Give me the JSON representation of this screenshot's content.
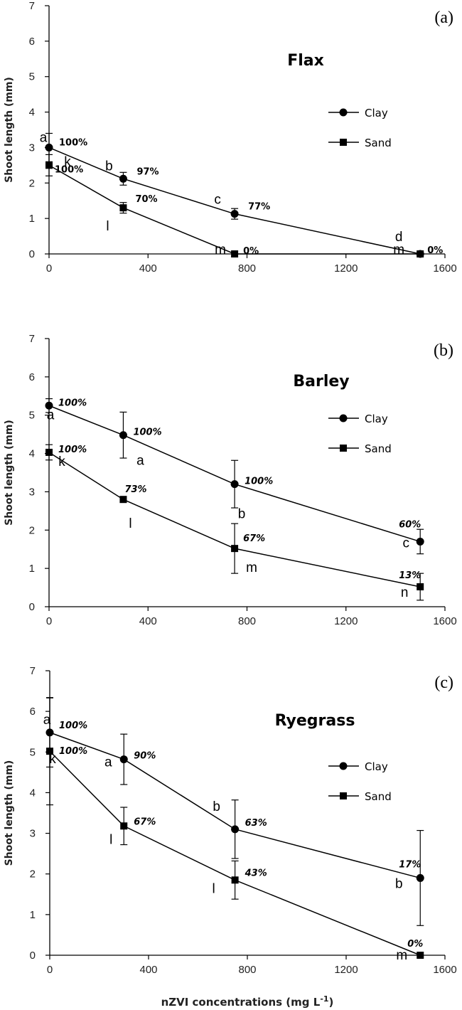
{
  "chart_data": [
    {
      "type": "line",
      "panel_label": "(a)",
      "title": "Flax",
      "ylabel": "Shoot length (mm)",
      "xlabel": "",
      "x": [
        0,
        300,
        750,
        1500
      ],
      "xlim": [
        0,
        1600
      ],
      "ylim": [
        0,
        7
      ],
      "xticks": [
        0,
        400,
        800,
        1200,
        1600
      ],
      "yticks": [
        0,
        1,
        2,
        3,
        4,
        5,
        6,
        7
      ],
      "legend_position": "right",
      "series": [
        {
          "name": "Clay",
          "marker": "circle",
          "x": [
            0,
            300,
            750,
            1500
          ],
          "values": [
            3.0,
            2.12,
            1.13,
            0.0
          ],
          "errors": [
            0.4,
            0.18,
            0.15,
            0.0
          ],
          "letters": [
            "a",
            "b",
            "c",
            "d"
          ],
          "percent_labels": [
            "100%",
            "97%",
            "77%",
            "0%"
          ]
        },
        {
          "name": "Sand",
          "marker": "square",
          "x": [
            0,
            300,
            750,
            1500
          ],
          "values": [
            2.5,
            1.3,
            0.0,
            0.0
          ],
          "errors": [
            0.3,
            0.15,
            0.0,
            0.0
          ],
          "letters": [
            "k",
            "l",
            "m",
            "m"
          ],
          "percent_labels": [
            "100%",
            "70%",
            "0%",
            ""
          ]
        }
      ]
    },
    {
      "type": "line",
      "panel_label": "(b)",
      "title": "Barley",
      "ylabel": "Shoot length (mm)",
      "xlabel": "",
      "x": [
        0,
        300,
        750,
        1500
      ],
      "xlim": [
        0,
        1600
      ],
      "ylim": [
        0,
        7
      ],
      "xticks": [
        0,
        400,
        800,
        1200,
        1600
      ],
      "yticks": [
        0,
        1,
        2,
        3,
        4,
        5,
        6,
        7
      ],
      "legend_position": "right",
      "series": [
        {
          "name": "Clay",
          "marker": "circle",
          "x": [
            0,
            300,
            750,
            1500
          ],
          "values": [
            5.25,
            4.48,
            3.2,
            1.7
          ],
          "errors": [
            0.18,
            0.6,
            0.62,
            0.32
          ],
          "letters": [
            "a",
            "a",
            "b",
            "c"
          ],
          "percent_labels": [
            "100%",
            "100%",
            "100%",
            "60%"
          ]
        },
        {
          "name": "Sand",
          "marker": "square",
          "x": [
            0,
            300,
            750,
            1500
          ],
          "values": [
            4.03,
            2.8,
            1.52,
            0.52
          ],
          "errors": [
            0.2,
            0.07,
            0.65,
            0.35
          ],
          "letters": [
            "k",
            "l",
            "m",
            "n"
          ],
          "percent_labels": [
            "100%",
            "73%",
            "67%",
            "13%"
          ]
        }
      ]
    },
    {
      "type": "line",
      "panel_label": "(c)",
      "title": "Ryegrass",
      "ylabel": "Shoot length (mm)",
      "xlabel": "nZVI concentrations  (mg L",
      "xlabel_superscript": "-1",
      "xlabel_suffix": ")",
      "x": [
        0,
        300,
        750,
        1500
      ],
      "xlim": [
        0,
        1600
      ],
      "ylim": [
        0,
        7
      ],
      "xticks": [
        0,
        400,
        800,
        1200,
        1600
      ],
      "yticks": [
        0,
        1,
        2,
        3,
        4,
        5,
        6,
        7
      ],
      "legend_position": "right",
      "series": [
        {
          "name": "Clay",
          "marker": "circle",
          "x": [
            0,
            300,
            750,
            1500
          ],
          "values": [
            5.48,
            4.82,
            3.1,
            1.9
          ],
          "errors": [
            0.85,
            0.62,
            0.72,
            1.17
          ],
          "letters": [
            "a",
            "a",
            "b",
            "b"
          ],
          "percent_labels": [
            "100%",
            "90%",
            "63%",
            "17%"
          ]
        },
        {
          "name": "Sand",
          "marker": "square",
          "x": [
            0,
            300,
            750,
            1500
          ],
          "values": [
            5.02,
            3.18,
            1.85,
            0.0
          ],
          "errors": [
            1.32,
            0.46,
            0.47,
            0.0
          ],
          "letters": [
            "k",
            "l",
            "l",
            "m"
          ],
          "percent_labels": [
            "100%",
            "67%",
            "43%",
            "0%"
          ]
        }
      ]
    }
  ]
}
